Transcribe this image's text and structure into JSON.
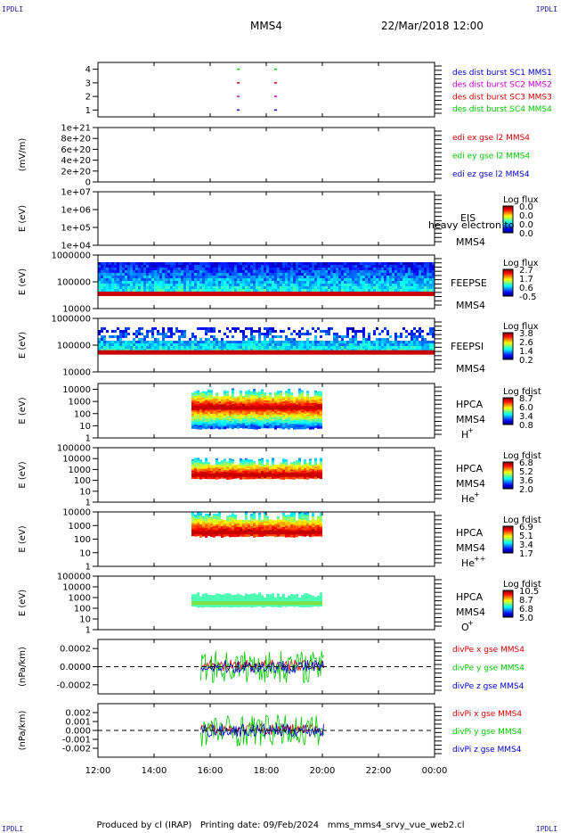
{
  "header": {
    "corner_label": "IPDLI",
    "spacecraft": "MMS4",
    "datetime": "22/Mar/2018 12:00"
  },
  "footer": {
    "produced_by": "Produced by cl (IRAP)",
    "printing_date": "Printing date: 09/Feb/2024",
    "filename": "mms_mms4_srvy_vue_web2.cl"
  },
  "colors": {
    "red": "#d40000",
    "green": "#00c800",
    "blue": "#0000c8",
    "magenta": "#c000c0"
  },
  "chart_data": [
    {
      "type": "scatter",
      "id": "burst",
      "yticks": [
        "1",
        "2",
        "3",
        "4"
      ],
      "ylim": [
        0.5,
        4.5
      ],
      "legend": [
        {
          "text": "des dist burst SC1 MMS1",
          "color": "#0000c8"
        },
        {
          "text": "des dist burst SC2 MMS2",
          "color": "#c000c0"
        },
        {
          "text": "des dist burst SC3 MMS3",
          "color": "#d40000"
        },
        {
          "text": "des dist burst SC4 MMS4",
          "color": "#00c800"
        }
      ],
      "series": [
        {
          "sc": 1,
          "times": [
            "17:00",
            "18:20"
          ],
          "color": "#0000c8"
        },
        {
          "sc": 2,
          "times": [
            "17:00",
            "18:20"
          ],
          "color": "#c000c0"
        },
        {
          "sc": 3,
          "times": [
            "17:00",
            "18:20"
          ],
          "color": "#d40000"
        },
        {
          "sc": 4,
          "times": [
            "17:00",
            "18:20"
          ],
          "color": "#00c800"
        }
      ]
    },
    {
      "type": "line",
      "id": "efield",
      "ylabel": "(mV/m)",
      "yticks": [
        "0",
        "2e+20",
        "4e+20",
        "6e+20",
        "8e+20",
        "1e+21"
      ],
      "ylim": [
        0,
        1e+21
      ],
      "legend": [
        {
          "text": "edi ex gse l2 MMS4",
          "color": "#d40000"
        },
        {
          "text": "edi ey gse l2 MMS4",
          "color": "#00c800"
        },
        {
          "text": "edi ez gse l2 MMS4",
          "color": "#0000c8"
        }
      ]
    },
    {
      "type": "heatmap",
      "id": "eis",
      "ylabel": "E (eV)",
      "yticks": [
        "1e+04",
        "1e+05",
        "1e+06",
        "1e+07"
      ],
      "ylim": [
        10000.0,
        10000000.0
      ],
      "instrument": "EIS",
      "sc": "MMS4",
      "overlay_text": "heavy electron to",
      "colorbar": {
        "title": "Log flux",
        "ticks": [
          "0.0",
          "0.0",
          "0.0",
          "0.0"
        ]
      }
    },
    {
      "type": "heatmap",
      "id": "feepse",
      "ylabel": "E (eV)",
      "yticks": [
        "10000",
        "100000",
        "1000000"
      ],
      "ylim": [
        10000.0,
        1000000.0
      ],
      "instrument": "FEEPSE",
      "sc": "MMS4",
      "time_range": [
        "12:00",
        "00:00"
      ],
      "colorbar": {
        "title": "Log flux",
        "ticks": [
          "2.7",
          "1.7",
          "0.6",
          "-0.5"
        ]
      }
    },
    {
      "type": "heatmap",
      "id": "feepsi",
      "ylabel": "E (eV)",
      "yticks": [
        "10000",
        "100000",
        "1000000"
      ],
      "ylim": [
        10000.0,
        1000000.0
      ],
      "instrument": "FEEPSI",
      "sc": "MMS4",
      "time_range": [
        "12:00",
        "00:00"
      ],
      "colorbar": {
        "title": "Log flux",
        "ticks": [
          "3.8",
          "2.6",
          "1.4",
          "0.2"
        ]
      }
    },
    {
      "type": "heatmap",
      "id": "hpca_h",
      "ylabel": "E (eV)",
      "yticks": [
        "1",
        "10",
        "100",
        "1000",
        "10000"
      ],
      "ylim": [
        1,
        30000
      ],
      "instrument": "HPCA",
      "sc": "MMS4",
      "species": "H",
      "charge": "+",
      "time_range": [
        "15:20",
        "20:00"
      ],
      "colorbar": {
        "title": "Log fdist",
        "ticks": [
          "8.7",
          "6.0",
          "3.4",
          "0.8"
        ]
      }
    },
    {
      "type": "heatmap",
      "id": "hpca_he1",
      "ylabel": "E (eV)",
      "yticks": [
        "1",
        "10",
        "100",
        "1000",
        "10000",
        "100000"
      ],
      "ylim": [
        1,
        100000
      ],
      "instrument": "HPCA",
      "sc": "MMS4",
      "species": "He",
      "charge": "+",
      "time_range": [
        "15:20",
        "20:00"
      ],
      "colorbar": {
        "title": "Log fdist",
        "ticks": [
          "6.8",
          "5.2",
          "3.6",
          "2.0"
        ]
      }
    },
    {
      "type": "heatmap",
      "id": "hpca_he2",
      "ylabel": "E (eV)",
      "yticks": [
        "1",
        "10",
        "100",
        "1000",
        "10000"
      ],
      "ylim": [
        1,
        10000
      ],
      "instrument": "HPCA",
      "sc": "MMS4",
      "species": "He",
      "charge": "++",
      "time_range": [
        "15:20",
        "20:00"
      ],
      "colorbar": {
        "title": "Log fdist",
        "ticks": [
          "6.9",
          "5.1",
          "3.4",
          "1.7"
        ]
      }
    },
    {
      "type": "heatmap",
      "id": "hpca_o",
      "ylabel": "E (eV)",
      "yticks": [
        "1",
        "10",
        "100",
        "1000",
        "10000",
        "100000"
      ],
      "ylim": [
        1,
        100000
      ],
      "instrument": "HPCA",
      "sc": "MMS4",
      "species": "O",
      "charge": "+",
      "time_range": [
        "15:20",
        "20:00"
      ],
      "colorbar": {
        "title": "Log fdist",
        "ticks": [
          "10.5",
          "8.7",
          "6.8",
          "5.0"
        ]
      }
    },
    {
      "type": "line",
      "id": "divpe",
      "ylabel": "(nPa/km)",
      "yticks": [
        "-0.0002",
        "0.0000",
        "0.0002"
      ],
      "ylim": [
        -0.0003,
        0.0003
      ],
      "time_range": [
        "15:40",
        "20:05"
      ],
      "legend": [
        {
          "text": "divPe x gse MMS4",
          "color": "#d40000"
        },
        {
          "text": "divPe y gse MMS4",
          "color": "#00c800"
        },
        {
          "text": "divPe z gse MMS4",
          "color": "#0000c8"
        }
      ]
    },
    {
      "type": "line",
      "id": "divpi",
      "ylabel": "(nPa/km)",
      "yticks": [
        "-0.002",
        "-0.001",
        "0.000",
        "0.001",
        "0.002"
      ],
      "ylim": [
        -0.003,
        0.003
      ],
      "time_range": [
        "15:40",
        "20:05"
      ],
      "legend": [
        {
          "text": "divPi x gse MMS4",
          "color": "#d40000"
        },
        {
          "text": "divPi y gse MMS4",
          "color": "#00c800"
        },
        {
          "text": "divPi z gse MMS4",
          "color": "#0000c8"
        }
      ]
    }
  ],
  "time_axis": {
    "range": [
      "12:00",
      "00:00"
    ],
    "ticks": [
      "12:00",
      "14:00",
      "16:00",
      "18:00",
      "20:00",
      "22:00",
      "00:00"
    ]
  }
}
